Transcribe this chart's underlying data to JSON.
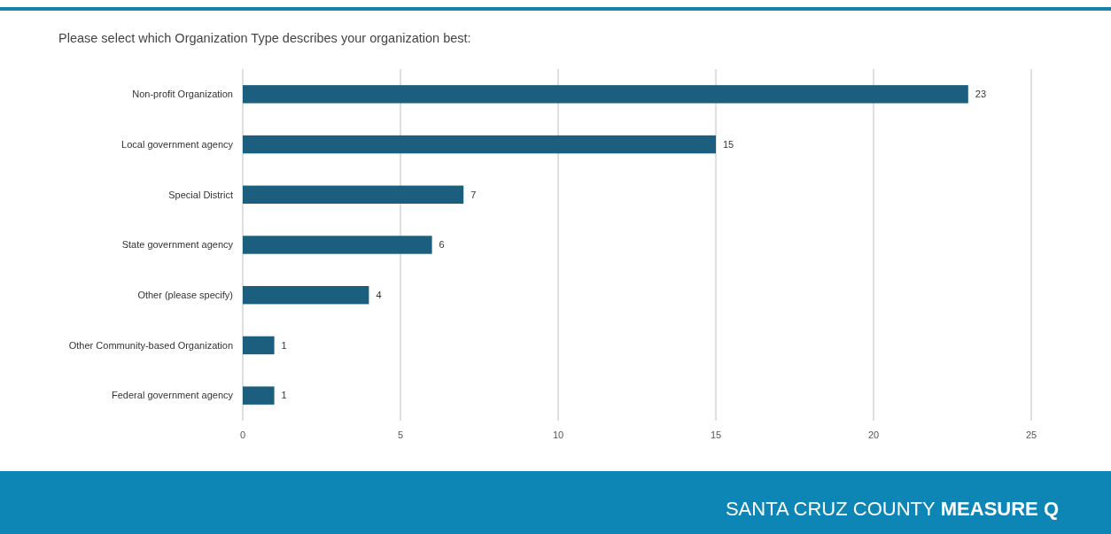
{
  "chart_data": {
    "type": "bar",
    "orientation": "horizontal",
    "title": "Please select which Organization Type describes your organization best:",
    "categories": [
      "Non-profit Organization",
      "Local government agency",
      "Special District",
      "State government agency",
      "Other (please specify)",
      "Other Community-based Organization",
      "Federal government agency"
    ],
    "values": [
      23,
      15,
      7,
      6,
      4,
      1,
      1
    ],
    "color": "#1b5e7e",
    "data_labels": true,
    "xlim": [
      0,
      25
    ],
    "xticks": [
      0,
      5,
      10,
      15,
      20,
      25
    ],
    "grid": "x",
    "annotations": [
      "SANTA CRUZ COUNTY",
      "MEASURE Q"
    ]
  }
}
